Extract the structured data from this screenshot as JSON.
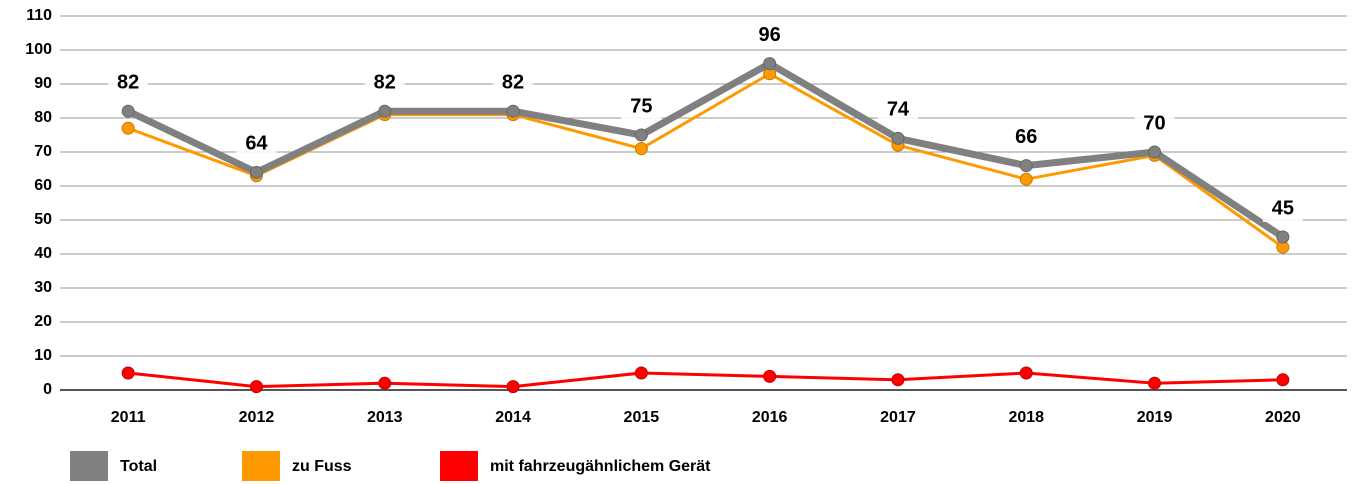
{
  "chart_data": {
    "type": "line",
    "categories": [
      "2011",
      "2012",
      "2013",
      "2014",
      "2015",
      "2016",
      "2017",
      "2018",
      "2019",
      "2020"
    ],
    "series": [
      {
        "name": "Total",
        "color": "#808080",
        "values": [
          82,
          64,
          82,
          82,
          75,
          96,
          74,
          66,
          70,
          45
        ]
      },
      {
        "name": "zu Fuss",
        "color": "#ff9900",
        "values": [
          77,
          63,
          81,
          81,
          71,
          93,
          72,
          62,
          69,
          42
        ]
      },
      {
        "name": "mit fahrzeugähnlichem Gerät",
        "color": "#ff0000",
        "values": [
          5,
          1,
          2,
          1,
          5,
          4,
          3,
          5,
          2,
          3
        ]
      }
    ],
    "ylim": [
      0,
      110
    ],
    "yticks": [
      0,
      10,
      20,
      30,
      40,
      50,
      60,
      70,
      80,
      90,
      100,
      110
    ],
    "grid": true,
    "legend": "bottom"
  }
}
